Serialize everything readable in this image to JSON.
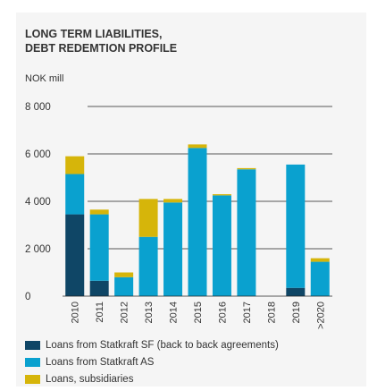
{
  "chart_data": {
    "type": "bar",
    "stacked": true,
    "title_lines": [
      "LONG TERM LIABILITIES,",
      "DEBT REDEMTION PROFILE"
    ],
    "unit": "NOK mill",
    "categories": [
      "2010",
      "2011",
      "2012",
      "2013",
      "2014",
      "2015",
      "2016",
      "2017",
      "2018",
      "2019",
      ">2020"
    ],
    "ylim": [
      0,
      8000
    ],
    "yticks": [
      0,
      2000,
      4000,
      6000,
      8000
    ],
    "ytick_labels": [
      "0",
      "2 000",
      "4 000",
      "6 000",
      "8 000"
    ],
    "grid": true,
    "legend_position": "bottom",
    "series": [
      {
        "name": "Loans from Statkraft SF (back to back agreements)",
        "color": "#0f4666",
        "values": [
          3450,
          650,
          0,
          0,
          0,
          0,
          0,
          0,
          0,
          350,
          0
        ]
      },
      {
        "name": "Loans from Statkraft AS",
        "color": "#0aa1cf",
        "values": [
          1700,
          2800,
          800,
          2500,
          3950,
          6250,
          4250,
          5350,
          0,
          5200,
          1450
        ]
      },
      {
        "name": "Loans, subsidiaries",
        "color": "#d6b50a",
        "values": [
          750,
          200,
          200,
          1600,
          150,
          150,
          50,
          50,
          0,
          0,
          150
        ]
      }
    ]
  }
}
